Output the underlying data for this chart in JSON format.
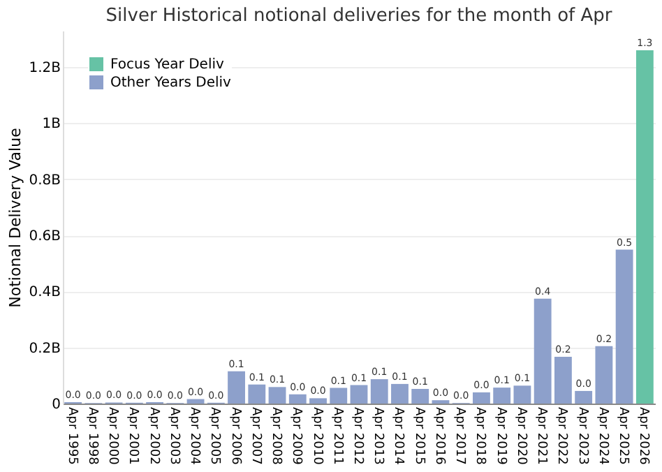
{
  "chart_data": {
    "type": "bar",
    "title": "Silver Historical notional deliveries for the month of Apr",
    "ylabel": "Notional Delivery Value",
    "categories": [
      "Apr 1995",
      "Apr 1998",
      "Apr 2000",
      "Apr 2001",
      "Apr 2002",
      "Apr 2003",
      "Apr 2004",
      "Apr 2005",
      "Apr 2006",
      "Apr 2007",
      "Apr 2008",
      "Apr 2009",
      "Apr 2010",
      "Apr 2011",
      "Apr 2012",
      "Apr 2013",
      "Apr 2014",
      "Apr 2015",
      "Apr 2016",
      "Apr 2017",
      "Apr 2018",
      "Apr 2019",
      "Apr 2020",
      "Apr 2021",
      "Apr 2022",
      "Apr 2023",
      "Apr 2024",
      "Apr 2025",
      "Apr 2026"
    ],
    "series": [
      {
        "name": "Focus Year Deliv",
        "color": "#66c2a5",
        "values": [
          null,
          null,
          null,
          null,
          null,
          null,
          null,
          null,
          null,
          null,
          null,
          null,
          null,
          null,
          null,
          null,
          null,
          null,
          null,
          null,
          null,
          null,
          null,
          null,
          null,
          null,
          null,
          null,
          1.26
        ],
        "value_labels": [
          null,
          null,
          null,
          null,
          null,
          null,
          null,
          null,
          null,
          null,
          null,
          null,
          null,
          null,
          null,
          null,
          null,
          null,
          null,
          null,
          null,
          null,
          null,
          null,
          null,
          null,
          null,
          null,
          "1.3"
        ]
      },
      {
        "name": "Other Years Deliv",
        "color": "#8da0cb",
        "values": [
          0.005,
          0.002,
          0.004,
          0.003,
          0.005,
          0.002,
          0.016,
          0.003,
          0.115,
          0.068,
          0.059,
          0.033,
          0.019,
          0.056,
          0.066,
          0.087,
          0.07,
          0.052,
          0.012,
          0.002,
          0.04,
          0.057,
          0.064,
          0.374,
          0.167,
          0.045,
          0.205,
          0.549,
          null
        ],
        "value_labels": [
          "0.0",
          "0.0",
          "0.0",
          "0.0",
          "0.0",
          "0.0",
          "0.0",
          "0.0",
          "0.1",
          "0.1",
          "0.1",
          "0.0",
          "0.0",
          "0.1",
          "0.1",
          "0.1",
          "0.1",
          "0.1",
          "0.0",
          "0.0",
          "0.0",
          "0.1",
          "0.1",
          "0.4",
          "0.2",
          "0.0",
          "0.2",
          "0.5",
          null
        ]
      }
    ],
    "ylim": [
      0,
      1.33
    ],
    "yticks": [
      0,
      {
        "value": 0.2,
        "label": "0.2B"
      },
      {
        "value": 0.4,
        "label": "0.4B"
      },
      {
        "value": 0.6,
        "label": "0.6B"
      },
      {
        "value": 0.8,
        "label": "0.8B"
      },
      {
        "value": 1,
        "label": "1B"
      },
      {
        "value": 1.2,
        "label": "1.2B"
      }
    ],
    "grid": "y",
    "legend": "top left"
  }
}
